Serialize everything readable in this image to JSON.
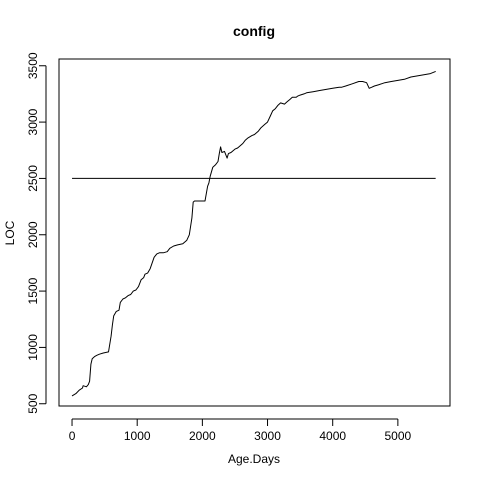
{
  "chart_data": {
    "type": "line",
    "title": "config",
    "xlabel": "Age.Days",
    "ylabel": "LOC",
    "xlim": [
      -200,
      5800
    ],
    "ylim": [
      480,
      3560
    ],
    "x_ticks": [
      0,
      1000,
      2000,
      3000,
      4000,
      5000
    ],
    "y_ticks": [
      500,
      1000,
      1500,
      2000,
      2500,
      3000,
      3500
    ],
    "x_tick_labels": [
      "0",
      "1000",
      "2000",
      "3000",
      "4000",
      "5000"
    ],
    "y_tick_labels": [
      "500",
      "1000",
      "1500",
      "2000",
      "2500",
      "3000",
      "3500"
    ],
    "grid": false,
    "legend": "none",
    "series": [
      {
        "style": "line",
        "color": "#000000",
        "x": [
          0,
          60,
          110,
          160,
          170,
          220,
          250,
          270,
          290,
          310,
          350,
          380,
          420,
          480,
          560,
          600,
          620,
          640,
          680,
          720,
          740,
          780,
          820,
          860,
          900,
          940,
          980,
          1020,
          1060,
          1100,
          1120,
          1160,
          1200,
          1260,
          1300,
          1340,
          1400,
          1460,
          1500,
          1560,
          1620,
          1700,
          1760,
          1800,
          1840,
          1860,
          1880,
          1900,
          1920,
          1980,
          2040,
          2080,
          2100,
          2120,
          2160,
          2200,
          2240,
          2260,
          2280,
          2300,
          2340,
          2380,
          2400,
          2440,
          2500,
          2540,
          2580,
          2620,
          2660,
          2700,
          2760,
          2800,
          2860,
          2900,
          2960,
          3000,
          3040,
          3080,
          3120,
          3160,
          3200,
          3260,
          3300,
          3340,
          3380,
          3440,
          3460,
          3500,
          3560,
          3600,
          3700,
          3800,
          3900,
          4000,
          4100,
          4140,
          4200,
          4300,
          4400,
          4460,
          4520,
          4560,
          4600,
          4640,
          4700,
          4800,
          4900,
          5000,
          5100,
          5200,
          5300,
          5400,
          5500,
          5580
        ],
        "y": [
          570,
          590,
          620,
          640,
          660,
          650,
          670,
          700,
          850,
          900,
          920,
          930,
          940,
          950,
          960,
          1100,
          1200,
          1280,
          1320,
          1330,
          1400,
          1430,
          1440,
          1460,
          1470,
          1500,
          1510,
          1540,
          1600,
          1620,
          1650,
          1660,
          1700,
          1800,
          1830,
          1840,
          1840,
          1850,
          1880,
          1900,
          1910,
          1920,
          1950,
          2000,
          2150,
          2290,
          2300,
          2300,
          2300,
          2300,
          2300,
          2430,
          2460,
          2520,
          2600,
          2620,
          2650,
          2720,
          2780,
          2730,
          2740,
          2680,
          2720,
          2730,
          2760,
          2770,
          2790,
          2810,
          2840,
          2860,
          2880,
          2890,
          2920,
          2950,
          2980,
          3000,
          3050,
          3100,
          3120,
          3150,
          3170,
          3160,
          3180,
          3200,
          3220,
          3220,
          3230,
          3240,
          3250,
          3260,
          3270,
          3280,
          3290,
          3300,
          3310,
          3310,
          3320,
          3340,
          3360,
          3360,
          3350,
          3300,
          3310,
          3320,
          3330,
          3350,
          3360,
          3370,
          3380,
          3400,
          3410,
          3420,
          3430,
          3450
        ]
      },
      {
        "style": "hline",
        "color": "#000000",
        "x": [
          0,
          5580
        ],
        "y": [
          2500,
          2500
        ]
      }
    ]
  }
}
